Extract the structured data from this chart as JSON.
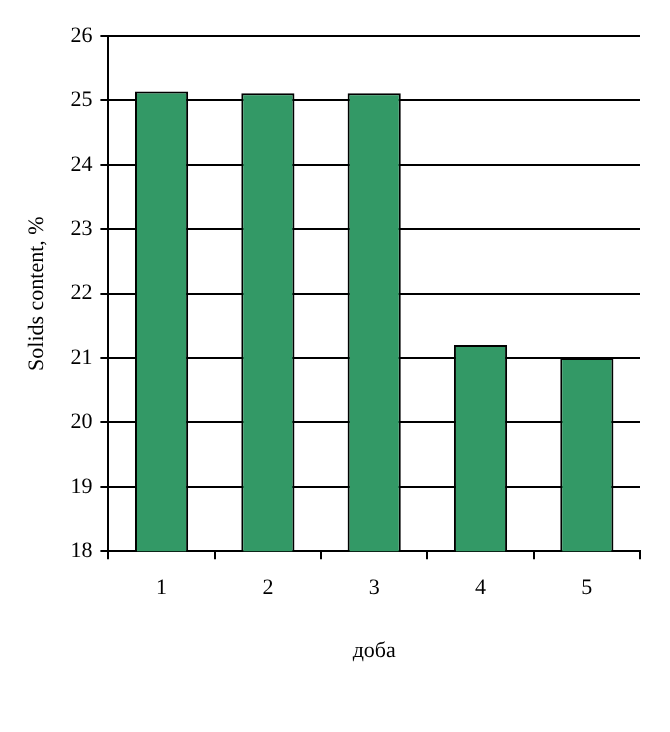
{
  "chart_data": {
    "type": "bar",
    "categories": [
      "1",
      "2",
      "3",
      "4",
      "5"
    ],
    "values": [
      25.14,
      25.11,
      25.11,
      21.2,
      21.0
    ],
    "color": "#339966",
    "ylabel": "Solids content, %",
    "xlabel": "доба",
    "ylim": [
      18,
      26
    ],
    "yticks": [
      18,
      19,
      20,
      21,
      22,
      23,
      24,
      25,
      26
    ],
    "grid": "y",
    "legend": false
  }
}
